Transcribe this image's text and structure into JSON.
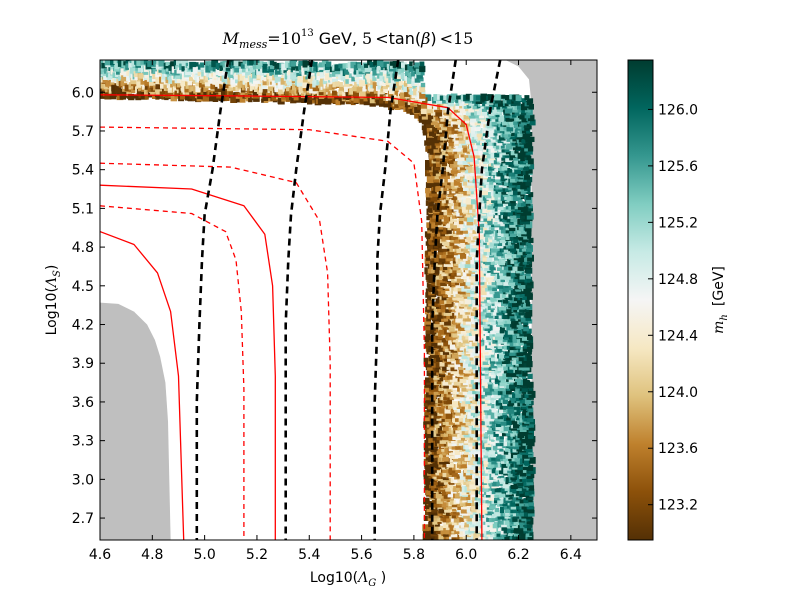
{
  "chart_data": {
    "type": "scatter",
    "title": "M_mess =10^13  GeV, 5 <tan(β) <15",
    "title_parts": {
      "lhs_main": "M",
      "lhs_sub": "mess",
      "equals": "=10",
      "exponent": "13",
      "unit": "GeV,",
      "range_low": "5",
      "lt1": "<",
      "func": "tan(",
      "beta": "β",
      "close": ")",
      "lt2": "<",
      "range_high": "15"
    },
    "xlabel": "Log10(Λ_G )",
    "xlabel_parts": {
      "main": "Log10(",
      "sym": "Λ",
      "sub": "G",
      "close": " )"
    },
    "ylabel": "Log10(Λ_S)",
    "ylabel_parts": {
      "main": "Log10(",
      "sym": "Λ",
      "sub": "S",
      "close": ")"
    },
    "xlim": [
      4.6,
      6.5
    ],
    "ylim": [
      2.53,
      6.25
    ],
    "xticks": [
      "4.6",
      "4.8",
      "5.0",
      "5.2",
      "5.4",
      "5.6",
      "5.8",
      "6.0",
      "6.2",
      "6.4"
    ],
    "yticks": [
      "2.7",
      "3.0",
      "3.3",
      "3.6",
      "3.9",
      "4.2",
      "4.5",
      "4.8",
      "5.1",
      "5.4",
      "5.7",
      "6.0"
    ],
    "colorbar": {
      "label": "m_h  [GeV]",
      "label_parts": {
        "sym": "m",
        "sub": "h",
        "unit": "[GeV]"
      },
      "range": [
        122.95,
        126.35
      ],
      "ticks": [
        "123.2",
        "123.6",
        "124.0",
        "124.4",
        "124.8",
        "125.2",
        "125.6",
        "126.0"
      ],
      "colors": [
        "#543005",
        "#8c510a",
        "#bf812d",
        "#dfc27d",
        "#f6e8c3",
        "#f5f5f5",
        "#c7eae5",
        "#80cdc1",
        "#35978f",
        "#01665e",
        "#003c30"
      ]
    },
    "excluded_regions": [
      {
        "name": "excluded-low-corner",
        "color": "#bfbfbf",
        "boundary": [
          [
            4.6,
            2.53
          ],
          [
            4.6,
            4.37
          ],
          [
            4.67,
            4.36
          ],
          [
            4.73,
            4.3
          ],
          [
            4.78,
            4.2
          ],
          [
            4.81,
            4.08
          ],
          [
            4.83,
            3.95
          ],
          [
            4.85,
            3.75
          ],
          [
            4.86,
            3.45
          ],
          [
            4.87,
            2.53
          ]
        ]
      },
      {
        "name": "excluded-right-band",
        "color": "#bfbfbf",
        "boundary": [
          [
            6.2,
            2.53
          ],
          [
            6.5,
            2.53
          ],
          [
            6.5,
            6.25
          ],
          [
            6.15,
            6.25
          ],
          [
            6.2,
            6.2
          ],
          [
            6.24,
            6.1
          ],
          [
            6.25,
            5.9
          ],
          [
            6.25,
            2.53
          ]
        ]
      }
    ],
    "scatter_band": {
      "description": "higgs mass scatter points",
      "outer_boundary": [
        [
          6.25,
          2.53
        ],
        [
          6.25,
          6.03
        ],
        [
          6.24,
          6.12
        ],
        [
          6.21,
          6.18
        ],
        [
          6.15,
          6.22
        ],
        [
          4.6,
          6.24
        ]
      ],
      "inner_boundary": [
        [
          5.85,
          2.53
        ],
        [
          5.86,
          5.55
        ],
        [
          5.84,
          5.78
        ],
        [
          5.78,
          5.87
        ],
        [
          5.65,
          5.92
        ],
        [
          4.6,
          5.98
        ]
      ],
      "value_min": 122.95,
      "value_max": 126.35
    },
    "contours": [
      {
        "name": "red-solid-1",
        "color": "#ff0000",
        "style": "solid",
        "points": [
          [
            4.6,
            4.92
          ],
          [
            4.73,
            4.82
          ],
          [
            4.82,
            4.6
          ],
          [
            4.87,
            4.3
          ],
          [
            4.9,
            3.8
          ],
          [
            4.92,
            2.53
          ]
        ]
      },
      {
        "name": "red-solid-2",
        "color": "#ff0000",
        "style": "solid",
        "points": [
          [
            4.6,
            5.28
          ],
          [
            4.95,
            5.25
          ],
          [
            5.15,
            5.12
          ],
          [
            5.23,
            4.9
          ],
          [
            5.26,
            4.5
          ],
          [
            5.27,
            3.8
          ],
          [
            5.27,
            2.53
          ]
        ]
      },
      {
        "name": "red-solid-3",
        "color": "#ff0000",
        "style": "solid",
        "points": [
          [
            4.6,
            5.98
          ],
          [
            5.2,
            5.97
          ],
          [
            5.7,
            5.96
          ],
          [
            5.93,
            5.88
          ],
          [
            6.0,
            5.75
          ],
          [
            6.03,
            5.5
          ],
          [
            6.05,
            4.9
          ],
          [
            6.06,
            2.53
          ]
        ]
      },
      {
        "name": "red-dashed-1",
        "color": "#ff0000",
        "style": "dashed",
        "points": [
          [
            4.6,
            5.12
          ],
          [
            4.95,
            5.06
          ],
          [
            5.08,
            4.92
          ],
          [
            5.12,
            4.7
          ],
          [
            5.14,
            4.3
          ],
          [
            5.15,
            3.7
          ],
          [
            5.15,
            2.53
          ]
        ]
      },
      {
        "name": "red-dashed-2",
        "color": "#ff0000",
        "style": "dashed",
        "points": [
          [
            4.6,
            5.45
          ],
          [
            5.1,
            5.42
          ],
          [
            5.35,
            5.3
          ],
          [
            5.44,
            5.0
          ],
          [
            5.47,
            4.6
          ],
          [
            5.48,
            3.9
          ],
          [
            5.48,
            2.53
          ]
        ]
      },
      {
        "name": "red-dashed-3",
        "color": "#ff0000",
        "style": "dashed",
        "points": [
          [
            4.6,
            5.73
          ],
          [
            5.4,
            5.71
          ],
          [
            5.7,
            5.62
          ],
          [
            5.8,
            5.45
          ],
          [
            5.83,
            5.0
          ],
          [
            5.84,
            4.0
          ],
          [
            5.84,
            2.53
          ]
        ]
      },
      {
        "name": "black-dashed-1",
        "color": "#000000",
        "style": "dashed",
        "points": [
          [
            5.09,
            6.25
          ],
          [
            5.06,
            5.85
          ],
          [
            5.03,
            5.4
          ],
          [
            5.0,
            5.05
          ],
          [
            4.99,
            4.7
          ],
          [
            4.98,
            4.2
          ],
          [
            4.97,
            3.6
          ],
          [
            4.97,
            2.53
          ]
        ]
      },
      {
        "name": "black-dashed-2",
        "color": "#000000",
        "style": "dashed",
        "points": [
          [
            5.41,
            6.25
          ],
          [
            5.38,
            5.85
          ],
          [
            5.35,
            5.4
          ],
          [
            5.33,
            5.05
          ],
          [
            5.32,
            4.7
          ],
          [
            5.31,
            4.2
          ],
          [
            5.31,
            3.6
          ],
          [
            5.31,
            2.53
          ]
        ]
      },
      {
        "name": "black-dashed-3",
        "color": "#000000",
        "style": "dashed",
        "points": [
          [
            5.74,
            6.25
          ],
          [
            5.71,
            5.85
          ],
          [
            5.69,
            5.4
          ],
          [
            5.67,
            5.05
          ],
          [
            5.66,
            4.7
          ],
          [
            5.66,
            4.2
          ],
          [
            5.65,
            3.6
          ],
          [
            5.65,
            2.53
          ]
        ]
      },
      {
        "name": "black-dashed-4",
        "color": "#000000",
        "style": "dashed",
        "points": [
          [
            5.96,
            6.25
          ],
          [
            5.93,
            5.85
          ],
          [
            5.91,
            5.4
          ],
          [
            5.89,
            5.05
          ],
          [
            5.88,
            4.7
          ],
          [
            5.87,
            4.2
          ],
          [
            5.87,
            3.6
          ],
          [
            5.87,
            2.53
          ]
        ]
      },
      {
        "name": "black-dashed-5",
        "color": "#000000",
        "style": "dashed",
        "points": [
          [
            6.13,
            6.25
          ],
          [
            6.09,
            5.85
          ],
          [
            6.06,
            5.4
          ],
          [
            6.05,
            5.05
          ],
          [
            6.04,
            4.7
          ],
          [
            6.04,
            4.2
          ],
          [
            6.04,
            3.6
          ],
          [
            6.04,
            2.53
          ]
        ]
      }
    ]
  }
}
